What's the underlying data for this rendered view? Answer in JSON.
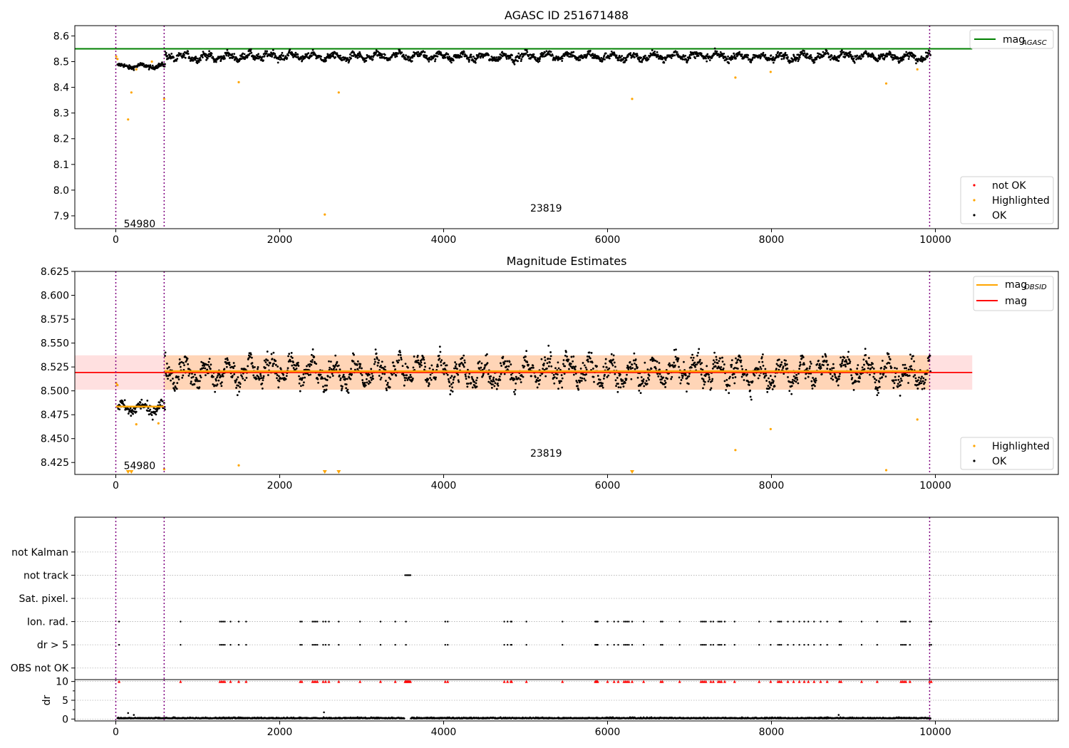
{
  "figure": {
    "background": "#ffffff"
  },
  "chart_data": [
    {
      "id": "top",
      "type": "scatter",
      "title": "AGASC ID 251671488",
      "xlim": [
        -500,
        11500
      ],
      "ylim": [
        7.85,
        8.64
      ],
      "x_ticks": [
        0,
        2000,
        4000,
        6000,
        8000,
        10000
      ],
      "y_ticks": [
        7.9,
        8.0,
        8.1,
        8.2,
        8.3,
        8.4,
        8.5,
        8.6
      ],
      "xlabel": "",
      "ylabel": "",
      "grid": false,
      "obs_boundaries": [
        0,
        590,
        9930
      ],
      "obs_labels": [
        {
          "text": "54980",
          "x": 290,
          "y": 7.87
        },
        {
          "text": "23819",
          "x": 5250,
          "y": 7.93
        }
      ],
      "reference_lines": [
        {
          "name": "mag_AGASC",
          "y": 8.55,
          "x_range": [
            -500,
            10450
          ],
          "color": "#008000"
        }
      ],
      "scatter_series": [
        {
          "name": "not OK",
          "color": "#ff0000",
          "points": []
        },
        {
          "name": "Highlighted",
          "color": "#ffa500",
          "points": [
            [
              5,
              8.52
            ],
            [
              20,
              8.51
            ],
            [
              150,
              8.275
            ],
            [
              190,
              8.38
            ],
            [
              250,
              8.47
            ],
            [
              440,
              8.5
            ],
            [
              590,
              8.355
            ],
            [
              1500,
              8.42
            ],
            [
              2550,
              7.905
            ],
            [
              2720,
              8.38
            ],
            [
              6300,
              8.355
            ],
            [
              7560,
              8.438
            ],
            [
              7990,
              8.46
            ],
            [
              9400,
              8.415
            ],
            [
              9780,
              8.47
            ]
          ]
        },
        {
          "name": "OK",
          "color": "#000000",
          "bands": [
            {
              "x_range": [
                20,
                600
              ],
              "center": 8.482,
              "amplitude": 0.006,
              "noise": 0.008
            },
            {
              "x_range": [
                600,
                9940
              ],
              "center": 8.52,
              "amplitude": 0.018,
              "noise": 0.012,
              "period": 260
            }
          ]
        }
      ],
      "legends": [
        {
          "position": "upper-right",
          "entries": [
            {
              "label": "mag",
              "subscript": "AGASC",
              "marker": "line",
              "color": "#008000"
            }
          ]
        },
        {
          "position": "lower-right",
          "entries": [
            {
              "label": "not OK",
              "marker": "dot",
              "color": "#ff0000"
            },
            {
              "label": "Highlighted",
              "marker": "dot",
              "color": "#ffa500"
            },
            {
              "label": "OK",
              "marker": "dot",
              "color": "#000000"
            }
          ]
        }
      ]
    },
    {
      "id": "middle",
      "type": "scatter",
      "title": "Magnitude Estimates",
      "xlim": [
        -500,
        11500
      ],
      "ylim": [
        8.4125,
        8.625
      ],
      "x_ticks": [
        0,
        2000,
        4000,
        6000,
        8000,
        10000
      ],
      "y_ticks": [
        8.425,
        8.45,
        8.475,
        8.5,
        8.525,
        8.55,
        8.575,
        8.6,
        8.625
      ],
      "xlabel": "",
      "ylabel": "",
      "grid": false,
      "obs_boundaries": [
        0,
        590,
        9930
      ],
      "obs_labels": [
        {
          "text": "54980",
          "x": 290,
          "y": 8.422
        },
        {
          "text": "23819",
          "x": 5250,
          "y": 8.435
        }
      ],
      "shaded_bands": [
        {
          "y_range": [
            8.5012,
            8.5372
          ],
          "x_range": [
            -500,
            10450
          ],
          "color": "#ff0000",
          "opacity": 0.12
        },
        {
          "y_range": [
            8.5012,
            8.5372
          ],
          "x_range": [
            590,
            9930
          ],
          "color": "#ffa500",
          "opacity": 0.18
        }
      ],
      "reference_lines": [
        {
          "name": "mag",
          "y": 8.5192,
          "x_range": [
            -500,
            10450
          ],
          "color": "#ff0000"
        },
        {
          "name": "mag_OBSID",
          "y": 8.5205,
          "x_range": [
            590,
            9930
          ],
          "color": "#ffa500"
        },
        {
          "name": "mag_OBSID",
          "y": 8.4835,
          "x_range": [
            0,
            590
          ],
          "color": "#ffa500"
        }
      ],
      "scatter_series": [
        {
          "name": "Highlighted",
          "color": "#ffa500",
          "points": [
            [
              5,
              8.508
            ],
            [
              20,
              8.506
            ],
            [
              250,
              8.465
            ],
            [
              520,
              8.466
            ],
            [
              590,
              8.418
            ],
            [
              1500,
              8.422
            ],
            [
              7560,
              8.438
            ],
            [
              7990,
              8.46
            ],
            [
              9400,
              8.417
            ],
            [
              9780,
              8.47
            ]
          ],
          "clipped_x": [
            150,
            190,
            2550,
            2720,
            6300
          ]
        },
        {
          "name": "OK",
          "color": "#000000",
          "bands": [
            {
              "x_range": [
                20,
                600
              ],
              "center": 8.482,
              "amplitude": 0.004,
              "noise": 0.006
            },
            {
              "x_range": [
                600,
                9940
              ],
              "center": 8.52,
              "amplitude": 0.018,
              "noise": 0.01,
              "period": 260
            }
          ]
        }
      ],
      "legends": [
        {
          "position": "upper-right",
          "entries": [
            {
              "label": "mag",
              "subscript": "OBSID",
              "marker": "line",
              "color": "#ffa500"
            },
            {
              "label": "mag",
              "subscript": "",
              "marker": "line",
              "color": "#ff0000"
            }
          ]
        },
        {
          "position": "lower-right",
          "entries": [
            {
              "label": "Highlighted",
              "marker": "dot",
              "color": "#ffa500"
            },
            {
              "label": "OK",
              "marker": "dot",
              "color": "#000000"
            }
          ]
        }
      ]
    },
    {
      "id": "flags",
      "type": "scatter",
      "title": "",
      "xlim": [
        -500,
        11500
      ],
      "ylim": [
        -0.5,
        6.5
      ],
      "x_ticks": [],
      "categories": [
        "OBS not OK",
        "dr > 5",
        "Ion. rad.",
        "Sat. pixel.",
        "not track",
        "not Kalman"
      ],
      "grid": true,
      "obs_boundaries": [
        0,
        590,
        9930
      ],
      "flag_x": [
        40,
        790,
        1270,
        1290,
        1310,
        1330,
        1400,
        1500,
        1590,
        2250,
        2270,
        2400,
        2420,
        2440,
        2460,
        2530,
        2560,
        2600,
        2720,
        2980,
        3230,
        3410,
        3540,
        4020,
        4050,
        4740,
        4780,
        4820,
        4830,
        5010,
        5450,
        5850,
        5860,
        5870,
        5880,
        6000,
        6080,
        6130,
        6200,
        6220,
        6240,
        6260,
        6300,
        6440,
        6650,
        6670,
        6880,
        7140,
        7160,
        7180,
        7200,
        7260,
        7290,
        7350,
        7370,
        7390,
        7430,
        7550,
        7850,
        7990,
        8080,
        8100,
        8120,
        8200,
        8270,
        8340,
        8400,
        8450,
        8520,
        8600,
        8680,
        8830,
        8850,
        9100,
        9290,
        9580,
        9600,
        9620,
        9640,
        9690,
        9930,
        9950
      ],
      "not_track_x": [
        3530,
        3545,
        3555,
        3565,
        3575,
        3585,
        3595
      ],
      "flag_rows": [
        "dr > 5",
        "Ion. rad."
      ]
    },
    {
      "id": "dr",
      "type": "scatter",
      "title": "",
      "xlim": [
        -500,
        11500
      ],
      "ylim": [
        -0.5,
        10.5
      ],
      "x_ticks": [
        0,
        2000,
        4000,
        6000,
        8000,
        10000
      ],
      "y_ticks": [
        0,
        5,
        10
      ],
      "ylabel": "dr",
      "grid": true,
      "obs_boundaries": [
        0,
        590,
        9930
      ],
      "outliers": [
        [
          150,
          1.6
        ],
        [
          220,
          1.1
        ],
        [
          2540,
          1.8
        ],
        [
          8820,
          1.1
        ]
      ],
      "clipped_color": "#ff0000"
    }
  ]
}
